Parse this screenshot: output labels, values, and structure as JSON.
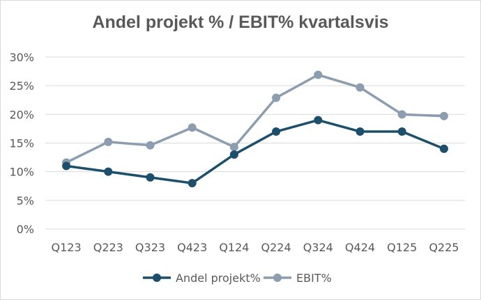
{
  "chart_data": {
    "type": "line",
    "title": "Andel projekt % / EBIT% kvartalsvis",
    "xlabel": "",
    "ylabel": "",
    "categories": [
      "Q123",
      "Q223",
      "Q323",
      "Q423",
      "Q124",
      "Q224",
      "Q324",
      "Q424",
      "Q125",
      "Q225"
    ],
    "y_ticks": [
      "0%",
      "5%",
      "10%",
      "15%",
      "20%",
      "25%",
      "30%"
    ],
    "ylim": [
      0,
      30
    ],
    "grid": true,
    "legend_position": "bottom",
    "series": [
      {
        "name": "Andel projekt%",
        "color": "#1b4f6b",
        "values": [
          11,
          10,
          9,
          8,
          13,
          17,
          19,
          17,
          17,
          14
        ]
      },
      {
        "name": "EBIT%",
        "color": "#8c9daf",
        "values": [
          11.6,
          15.2,
          14.6,
          17.7,
          14.3,
          22.9,
          26.9,
          24.7,
          20.0,
          19.7
        ]
      }
    ]
  }
}
